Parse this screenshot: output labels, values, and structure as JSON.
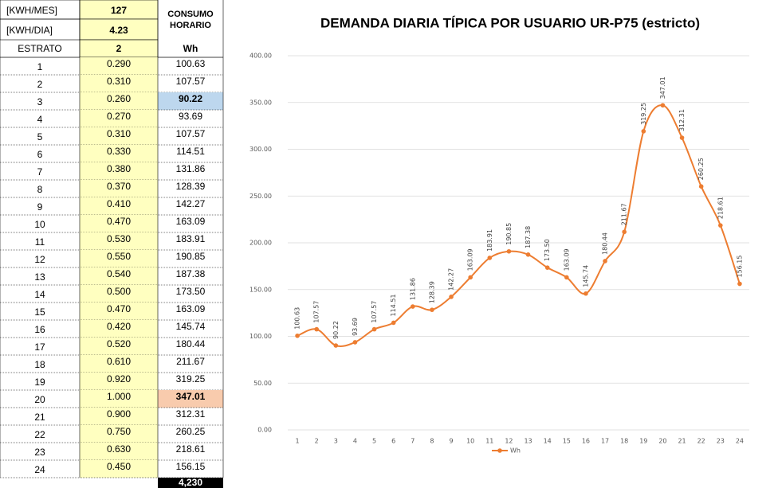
{
  "table": {
    "header": [
      [
        "[KWH/MES]",
        "127"
      ],
      [
        "[KWH/DIA]",
        "4.23"
      ]
    ],
    "consumo_label": "CONSUMO HORARIO",
    "columns": [
      "ESTRATO",
      "2",
      "Wh"
    ],
    "rows": [
      [
        "1",
        "0.290",
        "100.63"
      ],
      [
        "2",
        "0.310",
        "107.57"
      ],
      [
        "3",
        "0.260",
        "90.22"
      ],
      [
        "4",
        "0.270",
        "93.69"
      ],
      [
        "5",
        "0.310",
        "107.57"
      ],
      [
        "6",
        "0.330",
        "114.51"
      ],
      [
        "7",
        "0.380",
        "131.86"
      ],
      [
        "8",
        "0.370",
        "128.39"
      ],
      [
        "9",
        "0.410",
        "142.27"
      ],
      [
        "10",
        "0.470",
        "163.09"
      ],
      [
        "11",
        "0.530",
        "183.91"
      ],
      [
        "12",
        "0.550",
        "190.85"
      ],
      [
        "13",
        "0.540",
        "187.38"
      ],
      [
        "14",
        "0.500",
        "173.50"
      ],
      [
        "15",
        "0.470",
        "163.09"
      ],
      [
        "16",
        "0.420",
        "145.74"
      ],
      [
        "17",
        "0.520",
        "180.44"
      ],
      [
        "18",
        "0.610",
        "211.67"
      ],
      [
        "19",
        "0.920",
        "319.25"
      ],
      [
        "20",
        "1.000",
        "347.01"
      ],
      [
        "21",
        "0.900",
        "312.31"
      ],
      [
        "22",
        "0.750",
        "260.25"
      ],
      [
        "23",
        "0.630",
        "218.61"
      ],
      [
        "24",
        "0.450",
        "156.15"
      ]
    ],
    "total": "4,230"
  },
  "chart_data": {
    "type": "line",
    "title": "DEMANDA DIARIA TÍPICA POR USUARIO UR-P75 (estricto)",
    "categories": [
      "1",
      "2",
      "3",
      "4",
      "5",
      "6",
      "7",
      "8",
      "9",
      "10",
      "11",
      "12",
      "13",
      "14",
      "15",
      "16",
      "17",
      "18",
      "19",
      "20",
      "21",
      "22",
      "23",
      "24"
    ],
    "series": [
      {
        "name": "Wh",
        "color": "#ed7d31",
        "values": [
          100.63,
          107.57,
          90.22,
          93.69,
          107.57,
          114.51,
          131.86,
          128.39,
          142.27,
          163.09,
          183.91,
          190.85,
          187.38,
          173.5,
          163.09,
          145.74,
          180.44,
          211.67,
          319.25,
          347.01,
          312.31,
          260.25,
          218.61,
          156.15
        ],
        "value_labels": [
          "100.63",
          "107.57",
          "90.22",
          "93.69",
          "107.57",
          "114.51",
          "131.86",
          "128.39",
          "142.27",
          "163.09",
          "183.91",
          "190.85",
          "187.38",
          "173.50",
          "163.09",
          "145.74",
          "180.44",
          "211.67",
          "319.25",
          "347.01",
          "312.31",
          "260.25",
          "218.61",
          "156.15"
        ]
      }
    ],
    "ylim": [
      0,
      400
    ],
    "yticks": [
      {
        "value": 0,
        "label": "0.00"
      },
      {
        "value": 50,
        "label": "50.00"
      },
      {
        "value": 100,
        "label": "100.00"
      },
      {
        "value": 150,
        "label": "150.00"
      },
      {
        "value": 200,
        "label": "200.00"
      },
      {
        "value": 250,
        "label": "250.00"
      },
      {
        "value": 300,
        "label": "300.00"
      },
      {
        "value": 350,
        "label": "350.00"
      },
      {
        "value": 400,
        "label": "400.00"
      }
    ],
    "grid": true,
    "legend": "bottom"
  }
}
